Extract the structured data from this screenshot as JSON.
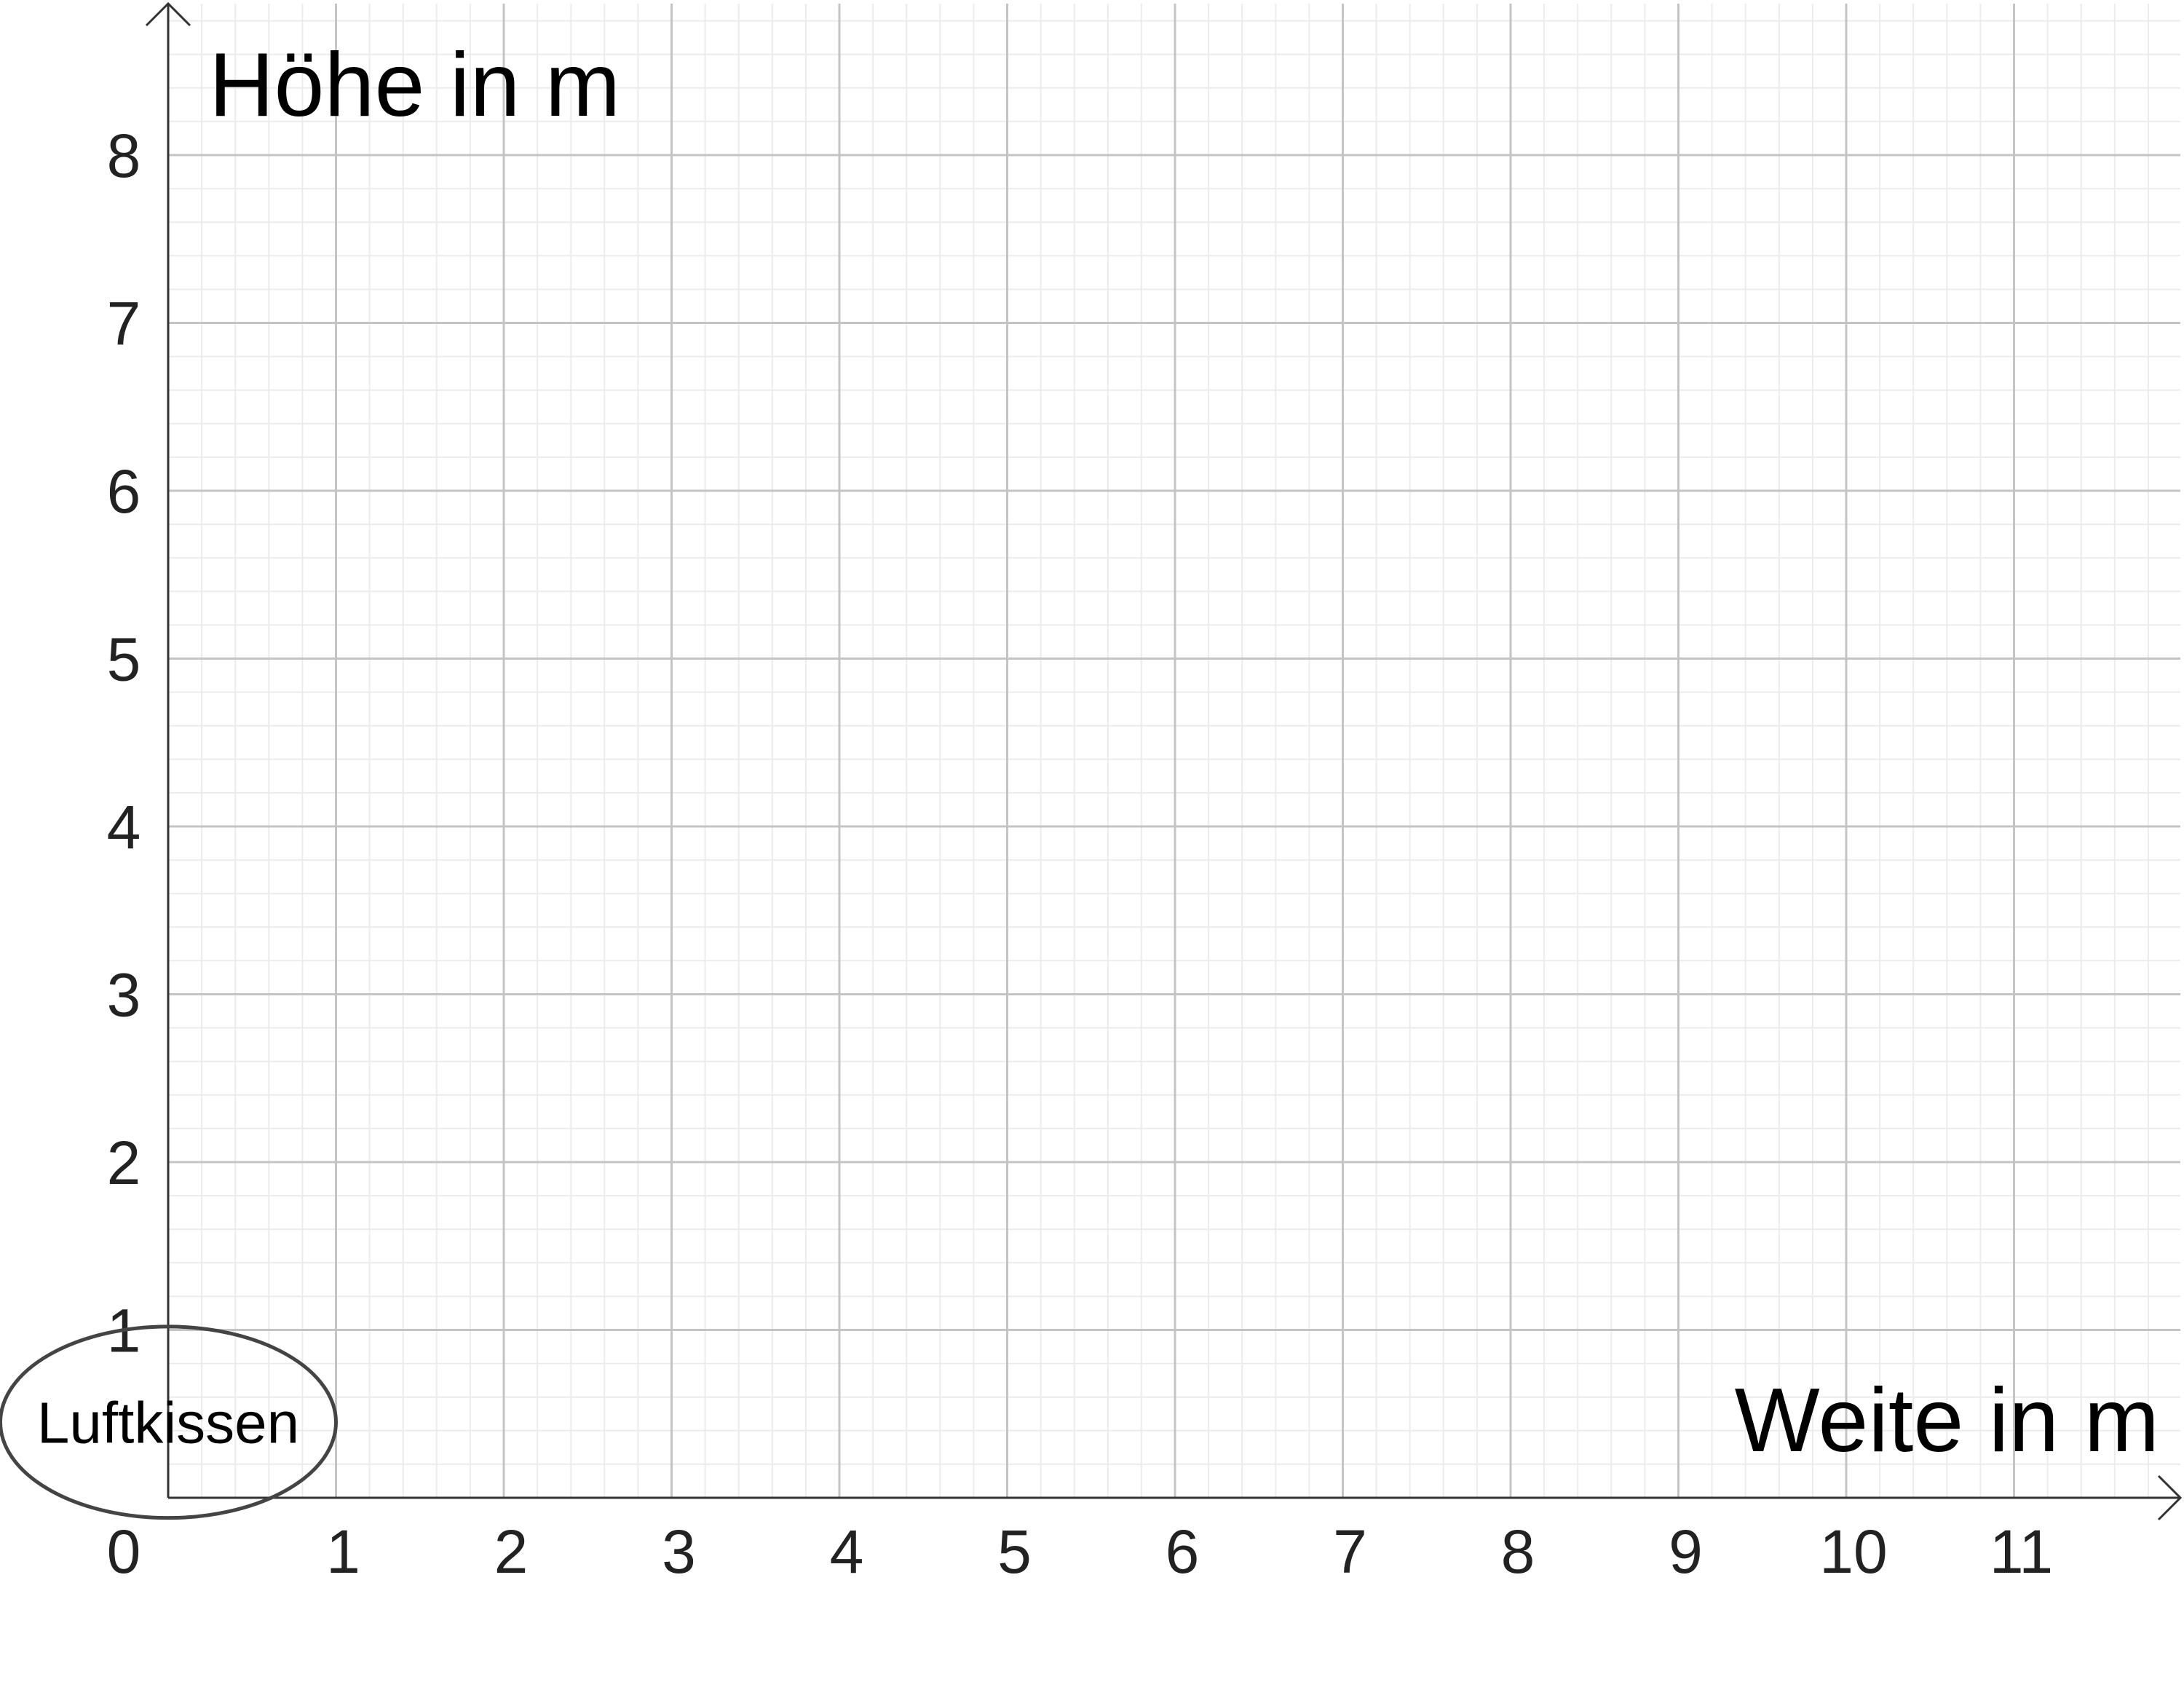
{
  "chart_data": {
    "type": "coordinate-grid",
    "xlabel": "Weite in m",
    "ylabel": "Höhe in m",
    "xlim": [
      0,
      12
    ],
    "ylim": [
      0,
      9
    ],
    "x_ticks": [
      "0",
      "1",
      "2",
      "3",
      "4",
      "5",
      "6",
      "7",
      "8",
      "9",
      "10",
      "11"
    ],
    "y_ticks": [
      "1",
      "2",
      "3",
      "4",
      "5",
      "6",
      "7",
      "8"
    ],
    "grid": true,
    "minor_grid_per_unit": 5,
    "annotations": [
      {
        "text": "Luftkissen",
        "shape": "ellipse",
        "center_x": 0,
        "center_y": 0.45,
        "radius_x": 1.0,
        "radius_y": 0.57
      }
    ]
  },
  "colors": {
    "major_grid": "#c4c4c4",
    "minor_grid": "#ececec",
    "axis": "#333333",
    "ellipse": "#444444"
  }
}
